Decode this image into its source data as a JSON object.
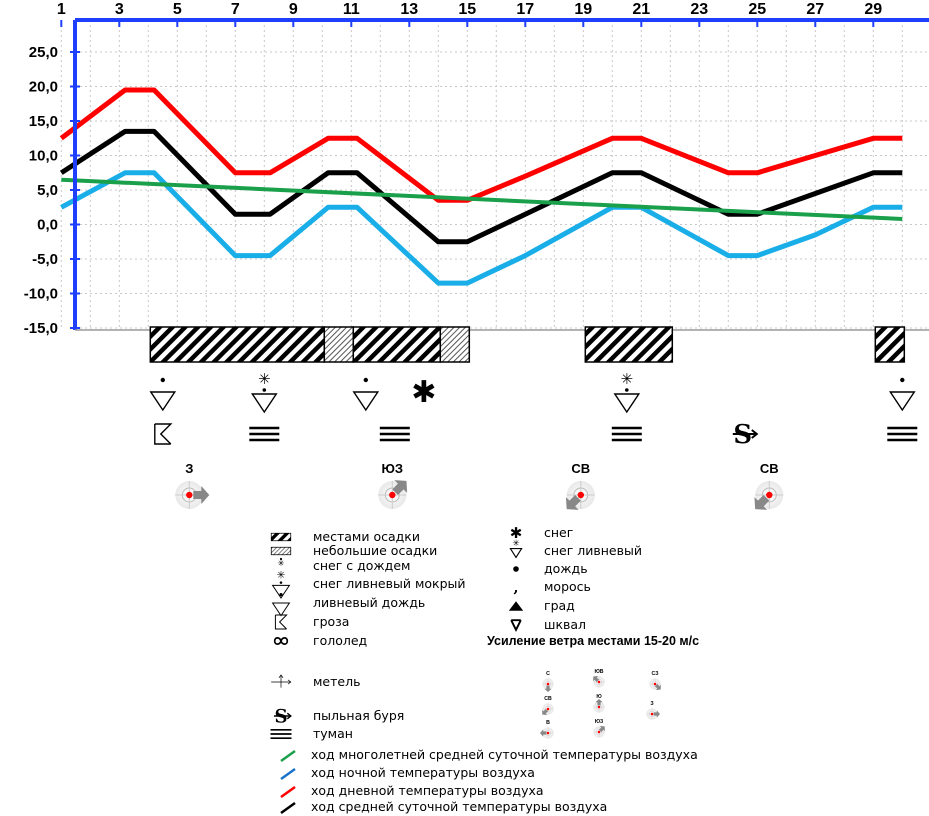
{
  "chart_data": {
    "type": "line",
    "x_ticks": [
      "1",
      "3",
      "5",
      "7",
      "9",
      "11",
      "13",
      "15",
      "17",
      "19",
      "21",
      "23",
      "25",
      "27",
      "29"
    ],
    "y_ticks": [
      "25,0",
      "20,0",
      "15,0",
      "10,0",
      "5,0",
      "0,0",
      "-5,0",
      "-10,0",
      "-15,0"
    ],
    "ylim": [
      -15,
      25
    ],
    "xlim": [
      0,
      30
    ],
    "grid": true,
    "series": [
      {
        "key": "day",
        "color": "#ff0000",
        "points": [
          [
            1,
            12.5
          ],
          [
            3.2,
            19.5
          ],
          [
            4.2,
            19.5
          ],
          [
            7,
            7.5
          ],
          [
            8.2,
            7.5
          ],
          [
            10.2,
            12.5
          ],
          [
            11.2,
            12.5
          ],
          [
            14,
            3.5
          ],
          [
            15,
            3.5
          ],
          [
            17,
            7
          ],
          [
            20,
            12.5
          ],
          [
            21,
            12.5
          ],
          [
            24,
            7.5
          ],
          [
            25,
            7.5
          ],
          [
            27,
            10
          ],
          [
            29,
            12.5
          ],
          [
            30,
            12.5
          ]
        ]
      },
      {
        "key": "avg",
        "color": "#000000",
        "points": [
          [
            1,
            7.5
          ],
          [
            3.2,
            13.5
          ],
          [
            4.2,
            13.5
          ],
          [
            7,
            1.5
          ],
          [
            8.2,
            1.5
          ],
          [
            10.2,
            7.5
          ],
          [
            11.2,
            7.5
          ],
          [
            14,
            -2.5
          ],
          [
            15,
            -2.5
          ],
          [
            17,
            1.5
          ],
          [
            20,
            7.5
          ],
          [
            21,
            7.5
          ],
          [
            24,
            1.5
          ],
          [
            25,
            1.5
          ],
          [
            27,
            4.5
          ],
          [
            29,
            7.5
          ],
          [
            30,
            7.5
          ]
        ]
      },
      {
        "key": "night",
        "color": "#1aaee8",
        "points": [
          [
            1,
            2.5
          ],
          [
            3.2,
            7.5
          ],
          [
            4.2,
            7.5
          ],
          [
            7,
            -4.5
          ],
          [
            8.2,
            -4.5
          ],
          [
            10.2,
            2.5
          ],
          [
            11.2,
            2.5
          ],
          [
            14,
            -8.5
          ],
          [
            15,
            -8.5
          ],
          [
            17,
            -4.5
          ],
          [
            20,
            2.5
          ],
          [
            21,
            2.5
          ],
          [
            24,
            -4.5
          ],
          [
            25,
            -4.5
          ],
          [
            27,
            -1.5
          ],
          [
            29,
            2.5
          ],
          [
            30,
            2.5
          ]
        ]
      },
      {
        "key": "norm",
        "color": "#1aa04a",
        "points": [
          [
            1,
            6.5
          ],
          [
            30,
            0.8
          ]
        ]
      }
    ],
    "precip_bars": [
      {
        "from": 4,
        "to": 10,
        "type": "местами осадки"
      },
      {
        "from": 10,
        "to": 11,
        "type": "небольшие осадки"
      },
      {
        "from": 11,
        "to": 14,
        "type": "местами осадки"
      },
      {
        "from": 14,
        "to": 15,
        "type": "небольшие осадки"
      },
      {
        "from": 19,
        "to": 22,
        "type": "местами осадки"
      },
      {
        "from": 29,
        "to": 30,
        "type": "местами осадки"
      }
    ],
    "weather_icons": [
      {
        "day": 4.5,
        "row": 1,
        "icon": "shower-rain-icon"
      },
      {
        "day": 8,
        "row": 1,
        "icon": "shower-snow-wet-icon"
      },
      {
        "day": 11.5,
        "row": 1,
        "icon": "shower-rain-icon"
      },
      {
        "day": 13.5,
        "row": 1,
        "icon": "snow-icon"
      },
      {
        "day": 20.5,
        "row": 1,
        "icon": "shower-snow-wet-icon"
      },
      {
        "day": 30,
        "row": 1,
        "icon": "shower-rain-icon"
      },
      {
        "day": 4.5,
        "row": 2,
        "icon": "thunderstorm-icon"
      },
      {
        "day": 8,
        "row": 2,
        "icon": "fog-icon"
      },
      {
        "day": 12.5,
        "row": 2,
        "icon": "fog-icon"
      },
      {
        "day": 20.5,
        "row": 2,
        "icon": "fog-icon"
      },
      {
        "day": 30,
        "row": 2,
        "icon": "fog-icon"
      },
      {
        "day": 24.5,
        "row": 2,
        "icon": "dust-storm-icon"
      }
    ],
    "wind": [
      {
        "day": 5,
        "label": "З",
        "dir": "east"
      },
      {
        "day": 12,
        "label": "ЮЗ",
        "dir": "ne"
      },
      {
        "day": 18.5,
        "label": "СВ",
        "dir": "sw"
      },
      {
        "day": 25,
        "label": "СВ",
        "dir": "sw"
      }
    ]
  },
  "legend_left": [
    {
      "icon": "hatch-dense-icon",
      "text": "местами осадки"
    },
    {
      "icon": "hatch-light-icon",
      "text": "небольшие осадки"
    },
    {
      "icon": "snow-rain-icon",
      "text": "снег с дождем"
    },
    {
      "icon": "shower-snow-wet-icon",
      "text": "снег ливневый мокрый"
    },
    {
      "icon": "shower-rain-icon",
      "text": "ливневый дождь"
    },
    {
      "icon": "thunderstorm-icon",
      "text": "гроза"
    },
    {
      "icon": "glaze-icon",
      "text": "гололед"
    },
    {
      "icon": "blizzard-icon",
      "text": "метель"
    },
    {
      "icon": "dust-storm-icon",
      "text": "пыльная буря"
    },
    {
      "icon": "fog-icon",
      "text": "туман"
    }
  ],
  "legend_right": [
    {
      "icon": "snow-icon",
      "text": "снег"
    },
    {
      "icon": "shower-snow-icon",
      "text": "снег ливневый"
    },
    {
      "icon": "rain-icon",
      "text": "дождь"
    },
    {
      "icon": "drizzle-icon",
      "text": "морось"
    },
    {
      "icon": "hail-icon",
      "text": "град"
    },
    {
      "icon": "squall-icon",
      "text": "шквал"
    }
  ],
  "wind_legend": {
    "title": "Усиление ветра местами 15-20 м/с",
    "items": [
      {
        "label": "С",
        "dir": "s"
      },
      {
        "label": "ЮВ",
        "dir": "nw"
      },
      {
        "label": "СЗ",
        "dir": "se"
      },
      {
        "label": "СВ",
        "dir": "sw"
      },
      {
        "label": "Ю",
        "dir": "n"
      },
      {
        "label": "З",
        "dir": "e"
      },
      {
        "label": "В",
        "dir": "w"
      },
      {
        "label": "ЮЗ",
        "dir": "ne"
      }
    ]
  },
  "line_legend": [
    {
      "color": "#1aa04a",
      "text": "ход многолетней средней суточной температуры воздуха"
    },
    {
      "color": "#1a73c9",
      "text": "ход ночной температуры воздуха"
    },
    {
      "color": "#ff0000",
      "text": "ход дневной температуры воздуха"
    },
    {
      "color": "#000000",
      "text": "ход средней суточной температуры воздуха"
    }
  ]
}
